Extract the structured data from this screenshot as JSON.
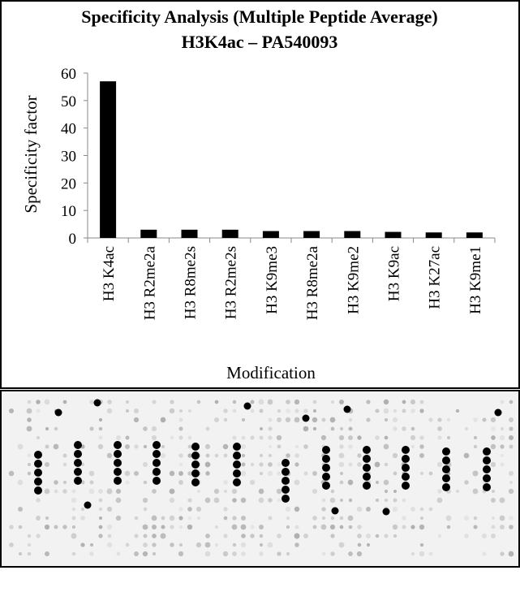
{
  "chart_data": {
    "type": "bar",
    "title": "Specificity Analysis  (Multiple Peptide Average)",
    "subtitle": "H3K4ac – PA540093",
    "x_label": "Modification",
    "y_label": "Specificity factor",
    "categories": [
      "H3 K4ac",
      "H3 R2me2a",
      "H3 R8me2s",
      "H3 R2me2s",
      "H3 K9me3",
      "H3 R8me2a",
      "H3 K9me2",
      "H3 K9ac",
      "H3 K27ac",
      "H3 K9me1"
    ],
    "values": [
      57,
      3,
      3,
      3,
      2.5,
      2.5,
      2.5,
      2.2,
      2,
      2
    ],
    "color": "#000000",
    "ylim": [
      0,
      60
    ],
    "yticks": [
      0,
      10,
      20,
      30,
      40,
      50,
      60
    ],
    "grid": false
  }
}
